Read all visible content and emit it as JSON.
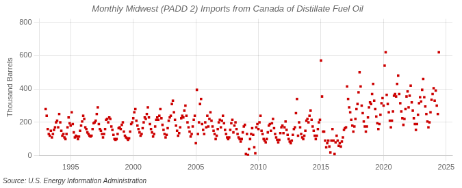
{
  "chart_data": {
    "type": "scatter",
    "title": "Monthly Midwest (PADD 2) Imports from Canada of Distillate Fuel Oil",
    "ylabel": "Thousand Barrels",
    "annotations": [
      "Source: U.S. Energy Information Administration"
    ],
    "color": "#CC0000",
    "marker": "square",
    "grid": true,
    "xlim": [
      1992.5,
      2025.5
    ],
    "ylim": [
      0,
      820
    ],
    "xticks": [
      1995,
      2000,
      2005,
      2010,
      2015,
      2020,
      2025
    ],
    "yticks": [
      0,
      200,
      400,
      600,
      800
    ],
    "x": [
      1993.0,
      1993.083,
      1993.167,
      1993.25,
      1993.333,
      1993.417,
      1993.5,
      1993.583,
      1993.667,
      1993.75,
      1993.833,
      1993.917,
      1994.0,
      1994.083,
      1994.167,
      1994.25,
      1994.333,
      1994.417,
      1994.5,
      1994.583,
      1994.667,
      1994.75,
      1994.833,
      1994.917,
      1995.0,
      1995.083,
      1995.167,
      1995.25,
      1995.333,
      1995.417,
      1995.5,
      1995.583,
      1995.667,
      1995.75,
      1995.833,
      1995.917,
      1996.0,
      1996.083,
      1996.167,
      1996.25,
      1996.333,
      1996.417,
      1996.5,
      1996.583,
      1996.667,
      1996.75,
      1996.833,
      1996.917,
      1997.0,
      1997.083,
      1997.167,
      1997.25,
      1997.333,
      1997.417,
      1997.5,
      1997.583,
      1997.667,
      1997.75,
      1997.833,
      1997.917,
      1998.0,
      1998.083,
      1998.167,
      1998.25,
      1998.333,
      1998.417,
      1998.5,
      1998.583,
      1998.667,
      1998.75,
      1998.833,
      1998.917,
      1999.0,
      1999.083,
      1999.167,
      1999.25,
      1999.333,
      1999.417,
      1999.5,
      1999.583,
      1999.667,
      1999.75,
      1999.833,
      1999.917,
      2000.0,
      2000.083,
      2000.167,
      2000.25,
      2000.333,
      2000.417,
      2000.5,
      2000.583,
      2000.667,
      2000.75,
      2000.833,
      2000.917,
      2001.0,
      2001.083,
      2001.167,
      2001.25,
      2001.333,
      2001.417,
      2001.5,
      2001.583,
      2001.667,
      2001.75,
      2001.833,
      2001.917,
      2002.0,
      2002.083,
      2002.167,
      2002.25,
      2002.333,
      2002.417,
      2002.5,
      2002.583,
      2002.667,
      2002.75,
      2002.833,
      2002.917,
      2003.0,
      2003.083,
      2003.167,
      2003.25,
      2003.333,
      2003.417,
      2003.5,
      2003.583,
      2003.667,
      2003.75,
      2003.833,
      2003.917,
      2004.0,
      2004.083,
      2004.167,
      2004.25,
      2004.333,
      2004.417,
      2004.5,
      2004.583,
      2004.667,
      2004.75,
      2004.833,
      2004.917,
      2005.0,
      2005.083,
      2005.167,
      2005.25,
      2005.333,
      2005.417,
      2005.5,
      2005.583,
      2005.667,
      2005.75,
      2005.833,
      2005.917,
      2006.0,
      2006.083,
      2006.167,
      2006.25,
      2006.333,
      2006.417,
      2006.5,
      2006.583,
      2006.667,
      2006.75,
      2006.833,
      2006.917,
      2007.0,
      2007.083,
      2007.167,
      2007.25,
      2007.333,
      2007.417,
      2007.5,
      2007.583,
      2007.667,
      2007.75,
      2007.833,
      2007.917,
      2008.0,
      2008.083,
      2008.167,
      2008.25,
      2008.333,
      2008.417,
      2008.5,
      2008.583,
      2008.667,
      2008.75,
      2008.833,
      2008.917,
      2009.0,
      2009.083,
      2009.167,
      2009.25,
      2009.333,
      2009.417,
      2009.5,
      2009.583,
      2009.667,
      2009.75,
      2009.833,
      2009.917,
      2010.0,
      2010.083,
      2010.167,
      2010.25,
      2010.333,
      2010.417,
      2010.5,
      2010.583,
      2010.667,
      2010.75,
      2010.833,
      2010.917,
      2011.0,
      2011.083,
      2011.167,
      2011.25,
      2011.333,
      2011.417,
      2011.5,
      2011.583,
      2011.667,
      2011.75,
      2011.833,
      2011.917,
      2012.0,
      2012.083,
      2012.167,
      2012.25,
      2012.333,
      2012.417,
      2012.5,
      2012.583,
      2012.667,
      2012.75,
      2012.833,
      2012.917,
      2013.0,
      2013.083,
      2013.167,
      2013.25,
      2013.333,
      2013.417,
      2013.5,
      2013.583,
      2013.667,
      2013.75,
      2013.833,
      2013.917,
      2014.0,
      2014.083,
      2014.167,
      2014.25,
      2014.333,
      2014.417,
      2014.5,
      2014.583,
      2014.667,
      2014.75,
      2014.833,
      2014.917,
      2015.0,
      2015.083,
      2015.167,
      2015.25,
      2015.333,
      2015.417,
      2015.5,
      2015.583,
      2015.667,
      2015.75,
      2015.833,
      2015.917,
      2016.0,
      2016.083,
      2016.167,
      2016.25,
      2016.333,
      2016.417,
      2016.5,
      2016.583,
      2016.667,
      2016.75,
      2016.833,
      2016.917,
      2017.0,
      2017.083,
      2017.167,
      2017.25,
      2017.333,
      2017.417,
      2017.5,
      2017.583,
      2017.667,
      2017.75,
      2017.833,
      2017.917,
      2018.0,
      2018.083,
      2018.167,
      2018.25,
      2018.333,
      2018.417,
      2018.5,
      2018.583,
      2018.667,
      2018.75,
      2018.833,
      2018.917,
      2019.0,
      2019.083,
      2019.167,
      2019.25,
      2019.333,
      2019.417,
      2019.5,
      2019.583,
      2019.667,
      2019.75,
      2019.833,
      2019.917,
      2020.0,
      2020.083,
      2020.167,
      2020.25,
      2020.333,
      2020.417,
      2020.5,
      2020.583,
      2020.667,
      2020.75,
      2020.833,
      2020.917,
      2021.0,
      2021.083,
      2021.167,
      2021.25,
      2021.333,
      2021.417,
      2021.5,
      2021.583,
      2021.667,
      2021.75,
      2021.833,
      2021.917,
      2022.0,
      2022.083,
      2022.167,
      2022.25,
      2022.333,
      2022.417,
      2022.5,
      2022.583,
      2022.667,
      2022.75,
      2022.833,
      2022.917,
      2023.0,
      2023.083,
      2023.167,
      2023.25,
      2023.333,
      2023.417,
      2023.5,
      2023.583,
      2023.667,
      2023.75,
      2023.833,
      2023.917,
      2024.0,
      2024.083,
      2024.167,
      2024.25,
      2024.333,
      2024.417
    ],
    "values": [
      280,
      240,
      160,
      130,
      120,
      150,
      110,
      130,
      155,
      170,
      200,
      210,
      170,
      250,
      200,
      150,
      120,
      130,
      110,
      100,
      130,
      170,
      230,
      195,
      180,
      260,
      190,
      140,
      110,
      120,
      115,
      100,
      115,
      150,
      180,
      205,
      240,
      220,
      170,
      160,
      140,
      130,
      120,
      115,
      120,
      160,
      195,
      200,
      210,
      250,
      290,
      190,
      160,
      150,
      130,
      110,
      130,
      160,
      215,
      220,
      200,
      230,
      220,
      175,
      155,
      125,
      100,
      95,
      100,
      130,
      165,
      170,
      160,
      185,
      200,
      145,
      120,
      110,
      105,
      95,
      105,
      145,
      190,
      200,
      225,
      260,
      280,
      210,
      180,
      160,
      140,
      120,
      130,
      165,
      200,
      230,
      220,
      250,
      290,
      230,
      190,
      160,
      140,
      115,
      130,
      175,
      215,
      230,
      215,
      240,
      280,
      225,
      185,
      155,
      130,
      110,
      125,
      165,
      210,
      230,
      240,
      310,
      330,
      260,
      215,
      180,
      150,
      120,
      135,
      170,
      225,
      240,
      230,
      270,
      300,
      240,
      200,
      170,
      145,
      115,
      130,
      175,
      215,
      240,
      75,
      395,
      130,
      200,
      310,
      340,
      190,
      155,
      130,
      200,
      170,
      240,
      175,
      220,
      260,
      210,
      175,
      150,
      130,
      100,
      120,
      160,
      200,
      215,
      170,
      210,
      240,
      195,
      155,
      130,
      110,
      100,
      110,
      155,
      195,
      215,
      140,
      180,
      200,
      160,
      130,
      110,
      100,
      85,
      100,
      140,
      175,
      185,
      10,
      130,
      5,
      40,
      100,
      130,
      165,
      125,
      50,
      15,
      170,
      190,
      160,
      200,
      240,
      150,
      130,
      100,
      90,
      80,
      100,
      140,
      180,
      190,
      150,
      195,
      220,
      165,
      130,
      110,
      95,
      80,
      95,
      135,
      170,
      180,
      135,
      170,
      205,
      155,
      125,
      100,
      85,
      75,
      90,
      125,
      160,
      170,
      255,
      340,
      120,
      200,
      170,
      130,
      110,
      100,
      120,
      150,
      210,
      220,
      200,
      240,
      270,
      215,
      175,
      150,
      120,
      100,
      120,
      160,
      200,
      215,
      570,
      355,
      145,
      145,
      90,
      50,
      75,
      90,
      55,
      20,
      90,
      160,
      90,
      10,
      80,
      120,
      90,
      60,
      75,
      55,
      85,
      110,
      155,
      165,
      170,
      415,
      340,
      290,
      260,
      215,
      180,
      145,
      175,
      220,
      280,
      310,
      380,
      500,
      415,
      300,
      255,
      205,
      175,
      145,
      175,
      230,
      290,
      320,
      310,
      370,
      430,
      330,
      280,
      235,
      195,
      160,
      190,
      245,
      315,
      345,
      300,
      540,
      620,
      365,
      310,
      260,
      210,
      170,
      210,
      265,
      360,
      370,
      355,
      430,
      480,
      370,
      315,
      265,
      225,
      185,
      220,
      280,
      355,
      385,
      290,
      360,
      420,
      320,
      270,
      225,
      190,
      155,
      190,
      245,
      315,
      350,
      325,
      395,
      460,
      350,
      295,
      250,
      205,
      170,
      200,
      260,
      335,
      370,
      405,
      330,
      390,
      300,
      250,
      620
    ]
  }
}
